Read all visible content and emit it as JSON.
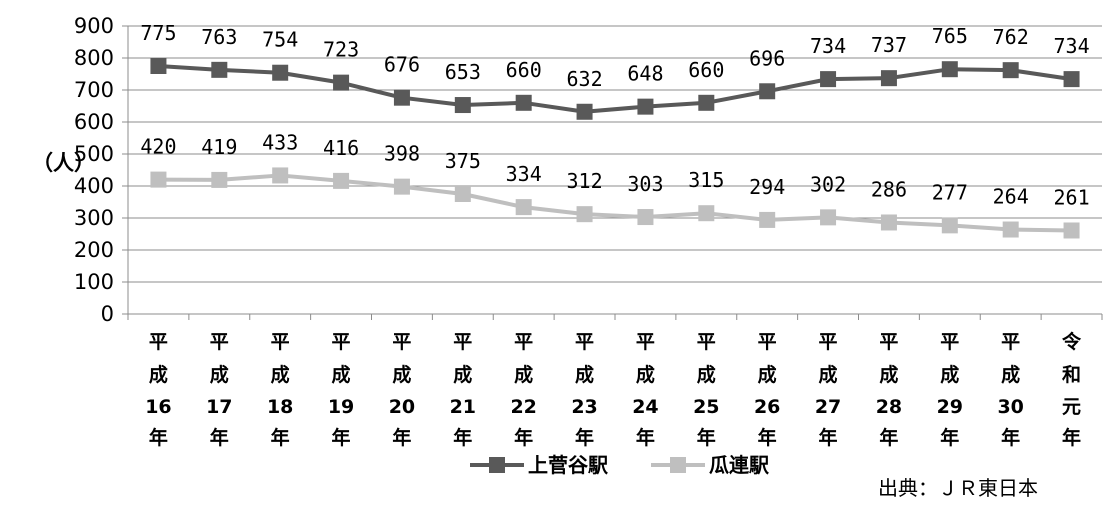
{
  "chart_data": {
    "type": "line",
    "ylabel": "（人）",
    "xlabel": "",
    "ylim": [
      0,
      900
    ],
    "ytick_step": 100,
    "grid": true,
    "legend_position": "bottom",
    "categories": [
      [
        "平",
        "成",
        "16",
        "年"
      ],
      [
        "平",
        "成",
        "17",
        "年"
      ],
      [
        "平",
        "成",
        "18",
        "年"
      ],
      [
        "平",
        "成",
        "19",
        "年"
      ],
      [
        "平",
        "成",
        "20",
        "年"
      ],
      [
        "平",
        "成",
        "21",
        "年"
      ],
      [
        "平",
        "成",
        "22",
        "年"
      ],
      [
        "平",
        "成",
        "23",
        "年"
      ],
      [
        "平",
        "成",
        "24",
        "年"
      ],
      [
        "平",
        "成",
        "25",
        "年"
      ],
      [
        "平",
        "成",
        "26",
        "年"
      ],
      [
        "平",
        "成",
        "27",
        "年"
      ],
      [
        "平",
        "成",
        "28",
        "年"
      ],
      [
        "平",
        "成",
        "29",
        "年"
      ],
      [
        "平",
        "成",
        "30",
        "年"
      ],
      [
        "令",
        "和",
        "元",
        "年"
      ]
    ],
    "series": [
      {
        "name": "上菅谷駅",
        "color": "#595959",
        "values": [
          775,
          763,
          754,
          723,
          676,
          653,
          660,
          632,
          648,
          660,
          696,
          734,
          737,
          765,
          762,
          734
        ]
      },
      {
        "name": "瓜連駅",
        "color": "#bfbfbf",
        "values": [
          420,
          419,
          433,
          416,
          398,
          375,
          334,
          312,
          303,
          315,
          294,
          302,
          286,
          277,
          264,
          261
        ]
      }
    ],
    "source": "出典：ＪＲ東日本"
  }
}
